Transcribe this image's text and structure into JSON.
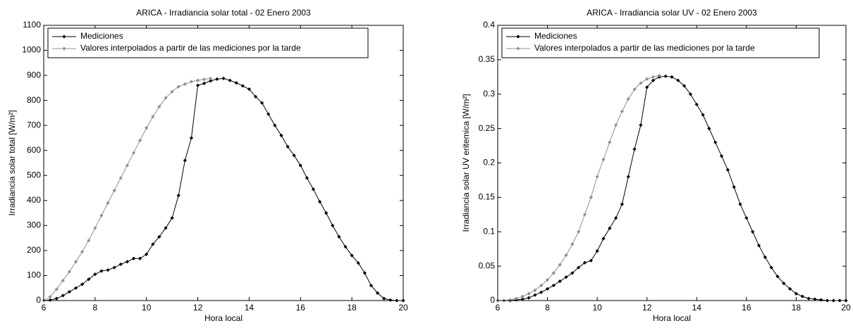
{
  "chart_data": [
    {
      "type": "line",
      "title": "ARICA - Irradiancia solar total - 02 Enero 2003",
      "xlabel": "Hora local",
      "ylabel": "Irradiancia solar total [W/m²]",
      "x": [
        6,
        6.25,
        6.5,
        6.75,
        7,
        7.25,
        7.5,
        7.75,
        8,
        8.25,
        8.5,
        8.75,
        9,
        9.25,
        9.5,
        9.75,
        10,
        10.25,
        10.5,
        10.75,
        11,
        11.25,
        11.5,
        11.75,
        12,
        12.25,
        12.5,
        12.75,
        13,
        13.25,
        13.5,
        13.75,
        14,
        14.25,
        14.5,
        14.75,
        15,
        15.25,
        15.5,
        15.75,
        16,
        16.25,
        16.5,
        16.75,
        17,
        17.25,
        17.5,
        17.75,
        18,
        18.25,
        18.5,
        18.75,
        19,
        19.25,
        19.5,
        19.75,
        20
      ],
      "series": [
        {
          "name": "Mediciones",
          "color": "#000000",
          "values": [
            0,
            2,
            8,
            20,
            35,
            50,
            65,
            85,
            105,
            118,
            122,
            132,
            145,
            155,
            168,
            168,
            185,
            225,
            255,
            290,
            330,
            420,
            560,
            650,
            860,
            868,
            878,
            885,
            888,
            880,
            870,
            858,
            845,
            815,
            790,
            745,
            700,
            660,
            615,
            580,
            540,
            490,
            445,
            395,
            350,
            300,
            255,
            215,
            180,
            150,
            110,
            60,
            30,
            8,
            2,
            0,
            0
          ]
        },
        {
          "name": "Valores interpolados a partir de las mediciones por la tarde",
          "color": "#909090",
          "values": [
            0,
            15,
            45,
            80,
            115,
            155,
            195,
            240,
            290,
            340,
            390,
            440,
            490,
            540,
            590,
            640,
            690,
            735,
            775,
            810,
            835,
            855,
            865,
            875,
            880,
            884,
            888,
            null,
            null,
            null,
            null,
            null,
            null,
            null,
            null,
            null,
            null,
            null,
            null,
            null,
            null,
            null,
            null,
            null,
            null,
            null,
            null,
            null,
            null,
            null,
            null,
            null,
            null,
            null,
            null,
            null,
            null
          ]
        }
      ],
      "xlim": [
        6,
        20
      ],
      "xticks": [
        6,
        8,
        10,
        12,
        14,
        16,
        18,
        20
      ],
      "ylim": [
        0,
        1100
      ],
      "yticks": [
        0,
        100,
        200,
        300,
        400,
        500,
        600,
        700,
        800,
        900,
        1000,
        1100
      ],
      "legend": "upper left"
    },
    {
      "type": "line",
      "title": "ARICA - Irradiancia solar UV - 02 Enero 2003",
      "xlabel": "Hora local",
      "ylabel": "Irradiancia solar UV eritemica [W/m²]",
      "x": [
        6,
        6.25,
        6.5,
        6.75,
        7,
        7.25,
        7.5,
        7.75,
        8,
        8.25,
        8.5,
        8.75,
        9,
        9.25,
        9.5,
        9.75,
        10,
        10.25,
        10.5,
        10.75,
        11,
        11.25,
        11.5,
        11.75,
        12,
        12.25,
        12.5,
        12.75,
        13,
        13.25,
        13.5,
        13.75,
        14,
        14.25,
        14.5,
        14.75,
        15,
        15.25,
        15.5,
        15.75,
        16,
        16.25,
        16.5,
        16.75,
        17,
        17.25,
        17.5,
        17.75,
        18,
        18.25,
        18.5,
        18.75,
        19,
        19.25,
        19.5,
        19.75,
        20
      ],
      "series": [
        {
          "name": "Mediciones",
          "color": "#000000",
          "values": [
            0,
            0,
            0,
            0.001,
            0.002,
            0.004,
            0.008,
            0.012,
            0.017,
            0.022,
            0.028,
            0.034,
            0.04,
            0.048,
            0.055,
            0.058,
            0.072,
            0.09,
            0.105,
            0.12,
            0.14,
            0.18,
            0.22,
            0.255,
            0.31,
            0.32,
            0.325,
            0.326,
            0.325,
            0.32,
            0.312,
            0.3,
            0.285,
            0.27,
            0.25,
            0.23,
            0.21,
            0.19,
            0.165,
            0.14,
            0.12,
            0.1,
            0.08,
            0.063,
            0.048,
            0.035,
            0.025,
            0.017,
            0.01,
            0.006,
            0.003,
            0.002,
            0.001,
            0,
            0,
            0,
            0
          ]
        },
        {
          "name": "Valores interpolados a partir de las mediciones por la tarde",
          "color": "#909090",
          "values": [
            0,
            0,
            0.001,
            0.003,
            0.006,
            0.01,
            0.015,
            0.022,
            0.03,
            0.04,
            0.052,
            0.066,
            0.082,
            0.1,
            0.125,
            0.15,
            0.18,
            0.205,
            0.23,
            0.255,
            0.275,
            0.293,
            0.307,
            0.316,
            0.322,
            0.325,
            0.327,
            null,
            null,
            null,
            null,
            null,
            null,
            null,
            null,
            null,
            null,
            null,
            null,
            null,
            null,
            null,
            null,
            null,
            null,
            null,
            null,
            null,
            null,
            null,
            null,
            null,
            null,
            null,
            null,
            null,
            null
          ]
        }
      ],
      "xlim": [
        6,
        20
      ],
      "xticks": [
        6,
        8,
        10,
        12,
        14,
        16,
        18,
        20
      ],
      "ylim": [
        0,
        0.4
      ],
      "yticks": [
        0,
        0.05,
        0.1,
        0.15,
        0.2,
        0.25,
        0.3,
        0.35,
        0.4
      ],
      "legend": "upper left"
    }
  ]
}
